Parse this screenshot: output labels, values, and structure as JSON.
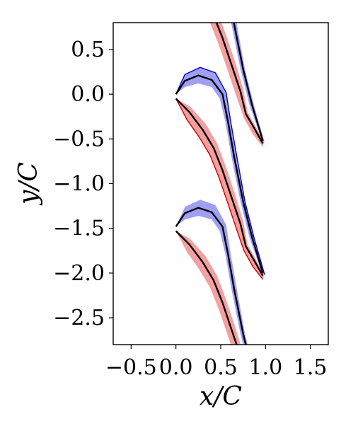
{
  "chart_data": {
    "type": "area",
    "xlabel": "x/C",
    "ylabel": "y/C",
    "xlim": [
      -0.7,
      1.7
    ],
    "ylim": [
      -2.8,
      0.8
    ],
    "grid": false,
    "x_ticks": [
      -0.5,
      0.0,
      0.5,
      1.0,
      1.5
    ],
    "x_tick_labels": [
      "−0.5",
      "0.0",
      "0.5",
      "1.0",
      "1.5"
    ],
    "y_ticks": [
      0.5,
      0.0,
      -0.5,
      -1.0,
      -1.5,
      -2.0,
      -2.5
    ],
    "y_tick_labels": [
      "0.5",
      "0.0",
      "−0.5",
      "−1.0",
      "−1.5",
      "−2.0",
      "−2.5"
    ],
    "blade_pitch": 1.48,
    "colors": {
      "suction_band": "#7f7ff0",
      "suction_edge": "#0000cc",
      "pressure_band": "#f08080",
      "pressure_edge": "#cc0000",
      "mean": "#000000"
    },
    "blade": {
      "mean_suction": [
        [
          0.0,
          0.0
        ],
        [
          0.1,
          0.15
        ],
        [
          0.25,
          0.21
        ],
        [
          0.4,
          0.16
        ],
        [
          0.52,
          0.0
        ],
        [
          0.58,
          -0.3
        ],
        [
          0.65,
          -0.7
        ],
        [
          0.75,
          -1.2
        ],
        [
          0.85,
          -1.6
        ],
        [
          0.97,
          -2.0
        ]
      ],
      "suction_upper": [
        [
          0.0,
          0.0
        ],
        [
          0.1,
          0.22
        ],
        [
          0.27,
          0.3
        ],
        [
          0.44,
          0.24
        ],
        [
          0.56,
          0.02
        ],
        [
          0.61,
          -0.3
        ],
        [
          0.68,
          -0.7
        ],
        [
          0.77,
          -1.2
        ],
        [
          0.87,
          -1.6
        ],
        [
          0.99,
          -2.02
        ]
      ],
      "suction_lower": [
        [
          0.0,
          0.0
        ],
        [
          0.1,
          0.08
        ],
        [
          0.25,
          0.12
        ],
        [
          0.4,
          0.08
        ],
        [
          0.49,
          -0.05
        ],
        [
          0.55,
          -0.3
        ],
        [
          0.62,
          -0.7
        ],
        [
          0.72,
          -1.2
        ],
        [
          0.82,
          -1.6
        ],
        [
          0.96,
          -2.0
        ]
      ],
      "mean_pressure": [
        [
          0.0,
          -0.05
        ],
        [
          0.15,
          -0.2
        ],
        [
          0.3,
          -0.4
        ],
        [
          0.42,
          -0.6
        ],
        [
          0.52,
          -0.85
        ],
        [
          0.62,
          -1.15
        ],
        [
          0.72,
          -1.45
        ],
        [
          0.78,
          -1.7
        ],
        [
          0.88,
          -1.87
        ],
        [
          0.97,
          -2.03
        ]
      ],
      "pressure_upper": [
        [
          0.0,
          -0.05
        ],
        [
          0.16,
          -0.14
        ],
        [
          0.33,
          -0.33
        ],
        [
          0.46,
          -0.55
        ],
        [
          0.56,
          -0.82
        ],
        [
          0.66,
          -1.12
        ],
        [
          0.75,
          -1.42
        ],
        [
          0.8,
          -1.68
        ],
        [
          0.9,
          -1.86
        ],
        [
          0.98,
          -2.02
        ]
      ],
      "pressure_lower": [
        [
          0.0,
          -0.05
        ],
        [
          0.12,
          -0.28
        ],
        [
          0.26,
          -0.48
        ],
        [
          0.38,
          -0.68
        ],
        [
          0.48,
          -0.93
        ],
        [
          0.58,
          -1.22
        ],
        [
          0.68,
          -1.52
        ],
        [
          0.76,
          -1.75
        ],
        [
          0.86,
          -1.93
        ],
        [
          0.97,
          -2.07
        ]
      ]
    }
  }
}
